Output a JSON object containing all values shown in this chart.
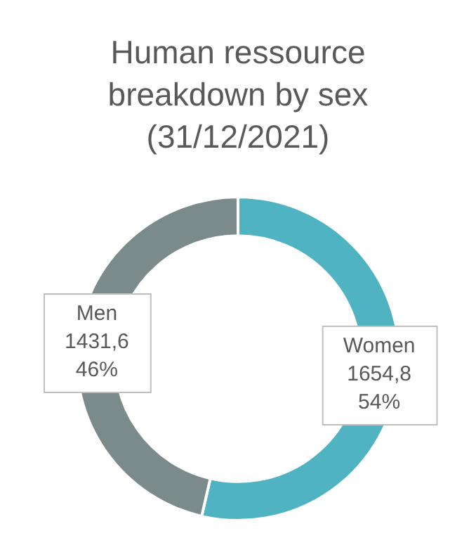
{
  "chart_data": {
    "type": "donut",
    "title": "Human ressource breakdown by sex (31/12/2021)",
    "categories": [
      "Women",
      "Men"
    ],
    "values": [
      1654.8,
      1431.6
    ],
    "colors": [
      "#4fb3c1",
      "#7b8a8b"
    ],
    "value_labels": [
      "1654,8\n54%",
      "1431,6\n46%"
    ],
    "legend": false
  }
}
